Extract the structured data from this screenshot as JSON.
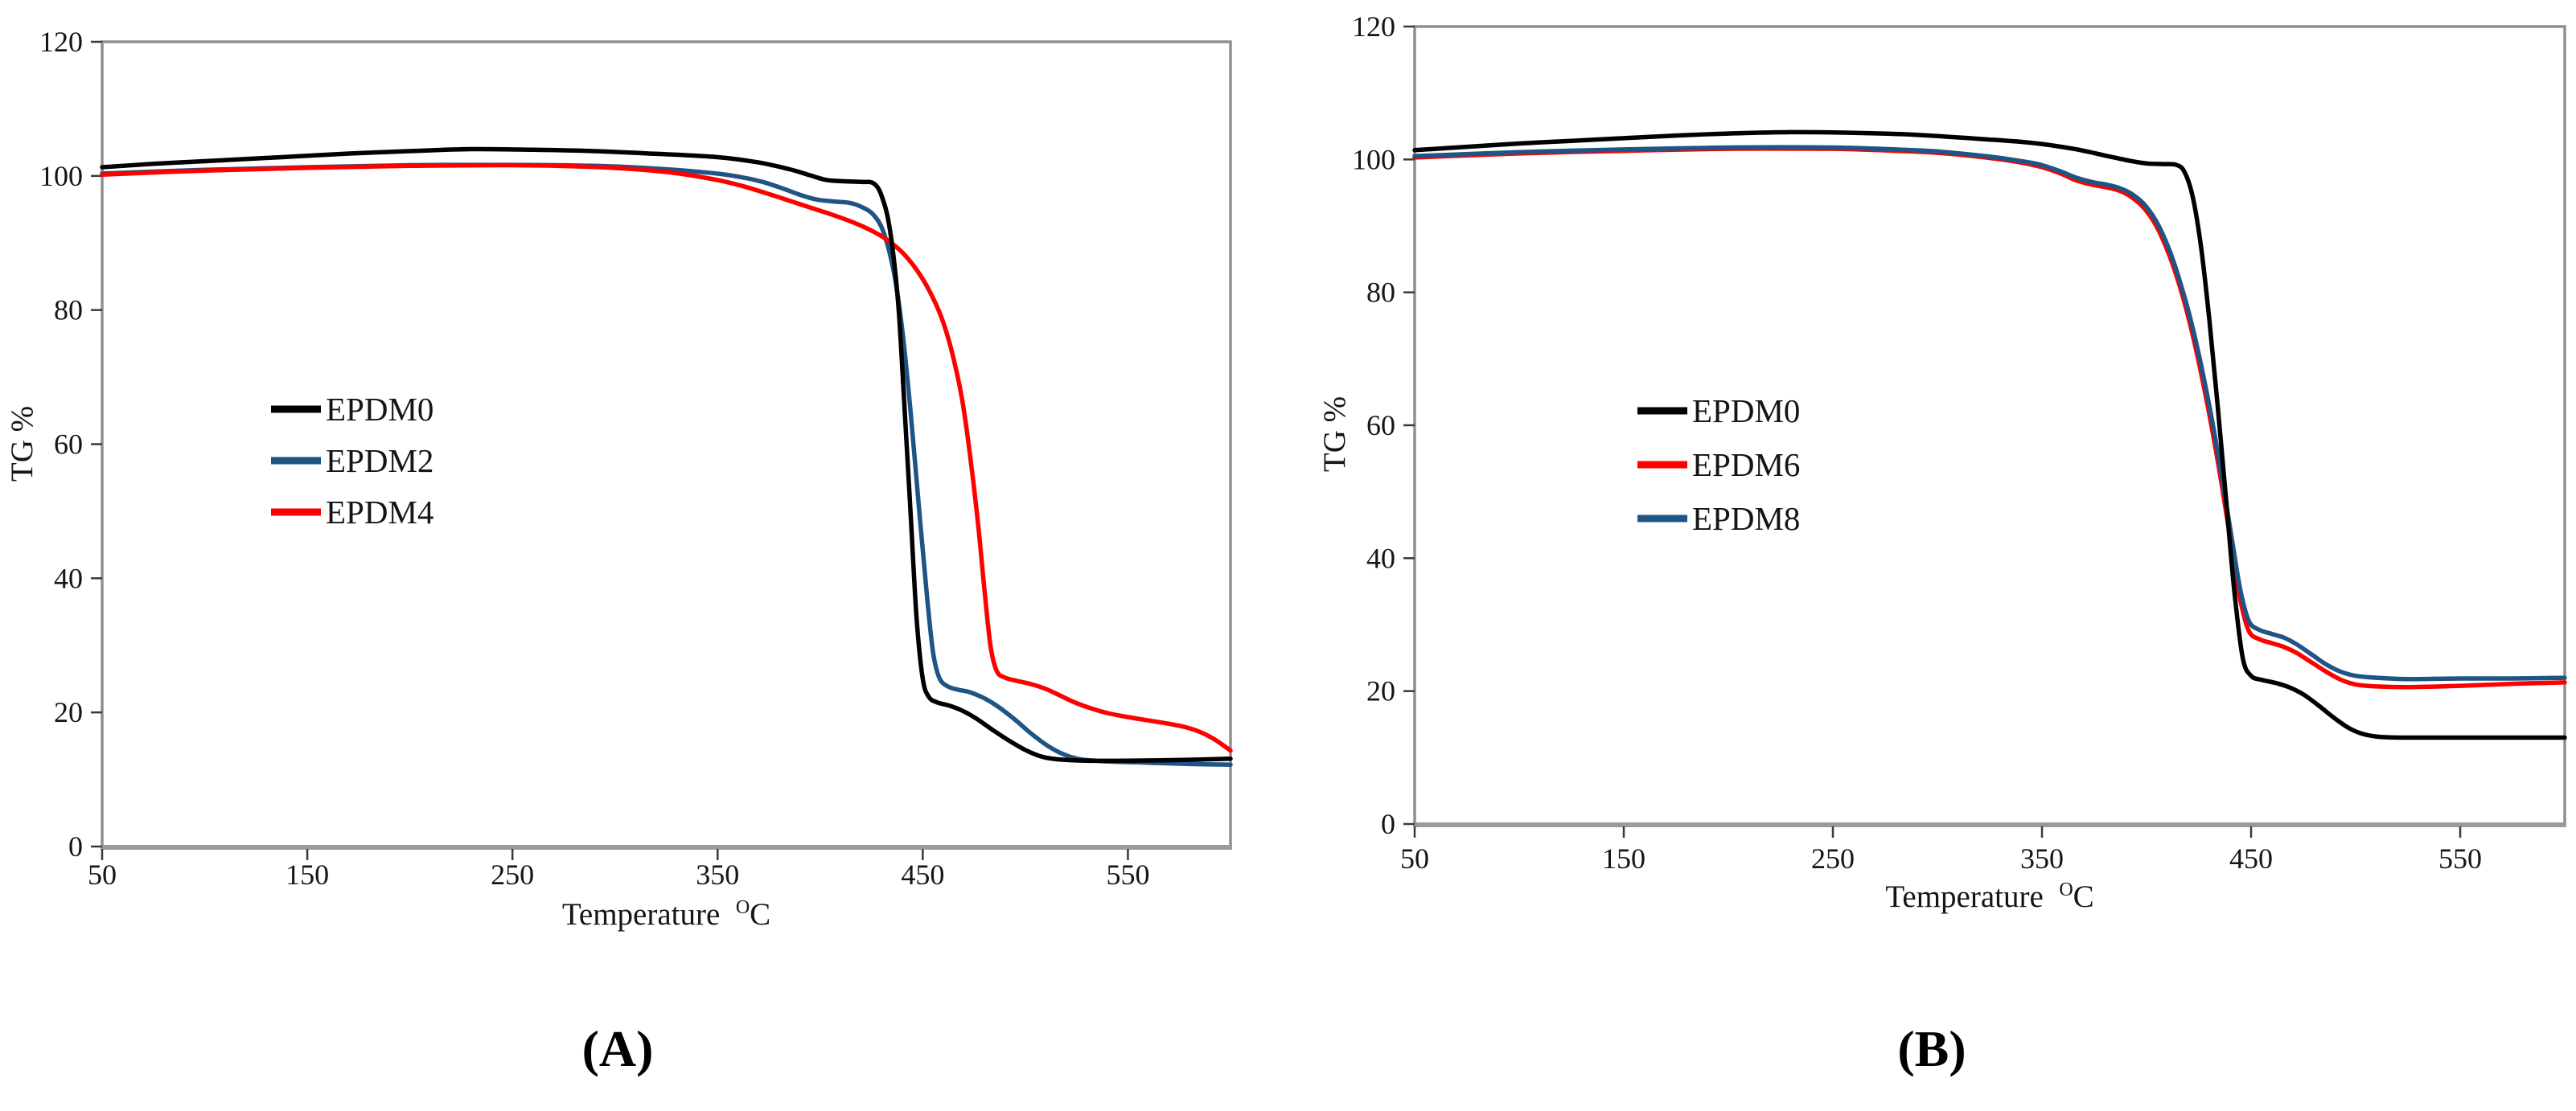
{
  "figure": {
    "background": "#ffffff",
    "panels": [
      {
        "label": "(A)"
      },
      {
        "label": "(B)"
      }
    ]
  },
  "chart_data": [
    {
      "type": "line",
      "panel": "(A)",
      "title": "",
      "xlabel": "Temperature",
      "xlabel_superscript": "O",
      "xlabel_unit": "C",
      "ylabel": "TG %",
      "xlim": [
        50,
        600
      ],
      "ylim": [
        0,
        120
      ],
      "x_ticks": [
        50,
        150,
        250,
        350,
        450,
        550
      ],
      "y_ticks": [
        0,
        20,
        40,
        60,
        80,
        100,
        120
      ],
      "grid": false,
      "legend_position": "left-middle",
      "axis_color": "#8f8f8f",
      "tick_color": "#3a3a3a",
      "text_color": "#151515",
      "series": [
        {
          "name": "EPDM0",
          "color": "#000000",
          "z": 3,
          "points": [
            [
              50,
              101.3
            ],
            [
              75,
              101.8
            ],
            [
              100,
              102.2
            ],
            [
              125,
              102.6
            ],
            [
              150,
              103.0
            ],
            [
              175,
              103.4
            ],
            [
              200,
              103.7
            ],
            [
              230,
              104.0
            ],
            [
              260,
              103.9
            ],
            [
              290,
              103.7
            ],
            [
              320,
              103.3
            ],
            [
              350,
              102.8
            ],
            [
              370,
              102.0
            ],
            [
              385,
              101.0
            ],
            [
              395,
              100.1
            ],
            [
              403,
              99.4
            ],
            [
              412,
              99.2
            ],
            [
              420,
              99.1
            ],
            [
              426,
              98.9
            ],
            [
              430,
              97.0
            ],
            [
              434,
              92.0
            ],
            [
              438,
              81.0
            ],
            [
              441,
              66.0
            ],
            [
              444,
              50.0
            ],
            [
              447,
              34.0
            ],
            [
              450,
              25.0
            ],
            [
              453,
              22.3
            ],
            [
              457,
              21.5
            ],
            [
              463,
              21.0
            ],
            [
              469,
              20.3
            ],
            [
              476,
              19.1
            ],
            [
              484,
              17.4
            ],
            [
              492,
              15.8
            ],
            [
              500,
              14.4
            ],
            [
              508,
              13.4
            ],
            [
              516,
              13.0
            ],
            [
              530,
              12.8
            ],
            [
              550,
              12.8
            ],
            [
              575,
              12.9
            ],
            [
              600,
              13.1
            ]
          ]
        },
        {
          "name": "EPDM2",
          "color": "#1F5585",
          "z": 1,
          "points": [
            [
              50,
              100.35
            ],
            [
              100,
              100.9
            ],
            [
              150,
              101.3
            ],
            [
              200,
              101.6
            ],
            [
              250,
              101.65
            ],
            [
              290,
              101.5
            ],
            [
              320,
              101.1
            ],
            [
              345,
              100.5
            ],
            [
              360,
              99.9
            ],
            [
              372,
              99.1
            ],
            [
              382,
              98.1
            ],
            [
              390,
              97.2
            ],
            [
              398,
              96.5
            ],
            [
              406,
              96.2
            ],
            [
              414,
              96.0
            ],
            [
              420,
              95.4
            ],
            [
              426,
              94.2
            ],
            [
              431,
              91.5
            ],
            [
              436,
              85.5
            ],
            [
              440,
              77.0
            ],
            [
              444,
              65.0
            ],
            [
              448,
              51.0
            ],
            [
              452,
              37.5
            ],
            [
              455,
              29.0
            ],
            [
              458,
              25.2
            ],
            [
              462,
              23.9
            ],
            [
              467,
              23.4
            ],
            [
              473,
              23.0
            ],
            [
              480,
              22.1
            ],
            [
              487,
              20.8
            ],
            [
              495,
              18.9
            ],
            [
              503,
              16.8
            ],
            [
              511,
              15.0
            ],
            [
              519,
              13.7
            ],
            [
              527,
              13.0
            ],
            [
              540,
              12.7
            ],
            [
              560,
              12.5
            ],
            [
              580,
              12.3
            ],
            [
              600,
              12.2
            ]
          ]
        },
        {
          "name": "EPDM4",
          "color": "#FE0000",
          "z": 2,
          "points": [
            [
              50,
              100.2
            ],
            [
              100,
              100.8
            ],
            [
              150,
              101.2
            ],
            [
              200,
              101.5
            ],
            [
              250,
              101.6
            ],
            [
              285,
              101.4
            ],
            [
              310,
              101.0
            ],
            [
              330,
              100.4
            ],
            [
              348,
              99.5
            ],
            [
              362,
              98.5
            ],
            [
              375,
              97.3
            ],
            [
              386,
              96.2
            ],
            [
              396,
              95.2
            ],
            [
              406,
              94.2
            ],
            [
              415,
              93.2
            ],
            [
              424,
              92.0
            ],
            [
              432,
              90.6
            ],
            [
              440,
              88.6
            ],
            [
              447,
              86.0
            ],
            [
              453,
              83.0
            ],
            [
              459,
              79.0
            ],
            [
              464,
              74.0
            ],
            [
              469,
              67.0
            ],
            [
              473,
              58.5
            ],
            [
              477,
              48.0
            ],
            [
              480,
              38.5
            ],
            [
              483,
              30.0
            ],
            [
              486,
              26.2
            ],
            [
              490,
              25.2
            ],
            [
              496,
              24.7
            ],
            [
              503,
              24.2
            ],
            [
              510,
              23.5
            ],
            [
              517,
              22.5
            ],
            [
              524,
              21.5
            ],
            [
              531,
              20.7
            ],
            [
              540,
              19.9
            ],
            [
              550,
              19.3
            ],
            [
              560,
              18.8
            ],
            [
              570,
              18.3
            ],
            [
              578,
              17.8
            ],
            [
              585,
              17.1
            ],
            [
              591,
              16.2
            ],
            [
              596,
              15.2
            ],
            [
              600,
              14.3
            ]
          ]
        }
      ]
    },
    {
      "type": "line",
      "panel": "(B)",
      "title": "",
      "xlabel": "Temperature",
      "xlabel_superscript": "O",
      "xlabel_unit": "C",
      "ylabel": "TG %",
      "xlim": [
        50,
        600
      ],
      "ylim": [
        0,
        120
      ],
      "x_ticks": [
        50,
        150,
        250,
        350,
        450,
        550
      ],
      "y_ticks": [
        0,
        20,
        40,
        60,
        80,
        100,
        120
      ],
      "grid": false,
      "legend_position": "left-middle",
      "axis_color": "#8f8f8f",
      "tick_color": "#3a3a3a",
      "text_color": "#151515",
      "series": [
        {
          "name": "EPDM0",
          "color": "#000000",
          "z": 3,
          "points": [
            [
              50,
              101.4
            ],
            [
              75,
              101.9
            ],
            [
              100,
              102.4
            ],
            [
              125,
              102.8
            ],
            [
              150,
              103.2
            ],
            [
              175,
              103.6
            ],
            [
              200,
              103.9
            ],
            [
              230,
              104.1
            ],
            [
              260,
              104.0
            ],
            [
              290,
              103.7
            ],
            [
              320,
              103.1
            ],
            [
              345,
              102.5
            ],
            [
              365,
              101.6
            ],
            [
              380,
              100.6
            ],
            [
              392,
              99.8
            ],
            [
              400,
              99.4
            ],
            [
              408,
              99.3
            ],
            [
              414,
              99.2
            ],
            [
              418,
              98.2
            ],
            [
              422,
              94.5
            ],
            [
              426,
              87.0
            ],
            [
              430,
              76.0
            ],
            [
              434,
              63.0
            ],
            [
              438,
              49.0
            ],
            [
              442,
              35.0
            ],
            [
              446,
              25.0
            ],
            [
              450,
              22.3
            ],
            [
              455,
              21.7
            ],
            [
              462,
              21.2
            ],
            [
              468,
              20.6
            ],
            [
              475,
              19.5
            ],
            [
              482,
              17.9
            ],
            [
              490,
              15.9
            ],
            [
              497,
              14.4
            ],
            [
              504,
              13.5
            ],
            [
              512,
              13.1
            ],
            [
              525,
              13.0
            ],
            [
              550,
              13.0
            ],
            [
              575,
              13.0
            ],
            [
              600,
              13.0
            ]
          ]
        },
        {
          "name": "EPDM6",
          "color": "#FE0000",
          "z": 1,
          "points": [
            [
              50,
              100.3
            ],
            [
              100,
              100.9
            ],
            [
              150,
              101.3
            ],
            [
              200,
              101.6
            ],
            [
              250,
              101.6
            ],
            [
              280,
              101.3
            ],
            [
              300,
              101.0
            ],
            [
              320,
              100.4
            ],
            [
              335,
              99.8
            ],
            [
              348,
              99.0
            ],
            [
              358,
              98.0
            ],
            [
              366,
              96.9
            ],
            [
              374,
              96.2
            ],
            [
              381,
              95.8
            ],
            [
              387,
              95.3
            ],
            [
              393,
              94.3
            ],
            [
              399,
              92.6
            ],
            [
              405,
              89.8
            ],
            [
              411,
              85.5
            ],
            [
              416,
              80.8
            ],
            [
              421,
              75.0
            ],
            [
              426,
              68.0
            ],
            [
              431,
              60.0
            ],
            [
              436,
              51.0
            ],
            [
              441,
              41.0
            ],
            [
              445,
              33.5
            ],
            [
              449,
              29.0
            ],
            [
              454,
              27.8
            ],
            [
              460,
              27.2
            ],
            [
              466,
              26.6
            ],
            [
              472,
              25.7
            ],
            [
              479,
              24.3
            ],
            [
              486,
              22.9
            ],
            [
              493,
              21.7
            ],
            [
              500,
              21.0
            ],
            [
              510,
              20.7
            ],
            [
              525,
              20.6
            ],
            [
              550,
              20.8
            ],
            [
              575,
              21.1
            ],
            [
              600,
              21.3
            ]
          ]
        },
        {
          "name": "EPDM8",
          "color": "#1F5585",
          "z": 2,
          "points": [
            [
              50,
              100.5
            ],
            [
              100,
              101.1
            ],
            [
              150,
              101.5
            ],
            [
              200,
              101.8
            ],
            [
              250,
              101.8
            ],
            [
              280,
              101.5
            ],
            [
              300,
              101.2
            ],
            [
              320,
              100.6
            ],
            [
              335,
              100.0
            ],
            [
              348,
              99.3
            ],
            [
              358,
              98.3
            ],
            [
              366,
              97.3
            ],
            [
              374,
              96.6
            ],
            [
              381,
              96.2
            ],
            [
              387,
              95.7
            ],
            [
              393,
              94.8
            ],
            [
              399,
              93.2
            ],
            [
              405,
              90.5
            ],
            [
              411,
              86.3
            ],
            [
              416,
              81.6
            ],
            [
              421,
              76.0
            ],
            [
              426,
              69.2
            ],
            [
              431,
              61.3
            ],
            [
              436,
              52.3
            ],
            [
              441,
              42.5
            ],
            [
              445,
              35.0
            ],
            [
              449,
              30.5
            ],
            [
              454,
              29.2
            ],
            [
              460,
              28.6
            ],
            [
              466,
              28.0
            ],
            [
              472,
              27.0
            ],
            [
              479,
              25.5
            ],
            [
              486,
              24.0
            ],
            [
              493,
              22.9
            ],
            [
              500,
              22.3
            ],
            [
              510,
              22.0
            ],
            [
              525,
              21.8
            ],
            [
              550,
              21.9
            ],
            [
              575,
              21.9
            ],
            [
              600,
              22.0
            ]
          ]
        }
      ]
    }
  ]
}
